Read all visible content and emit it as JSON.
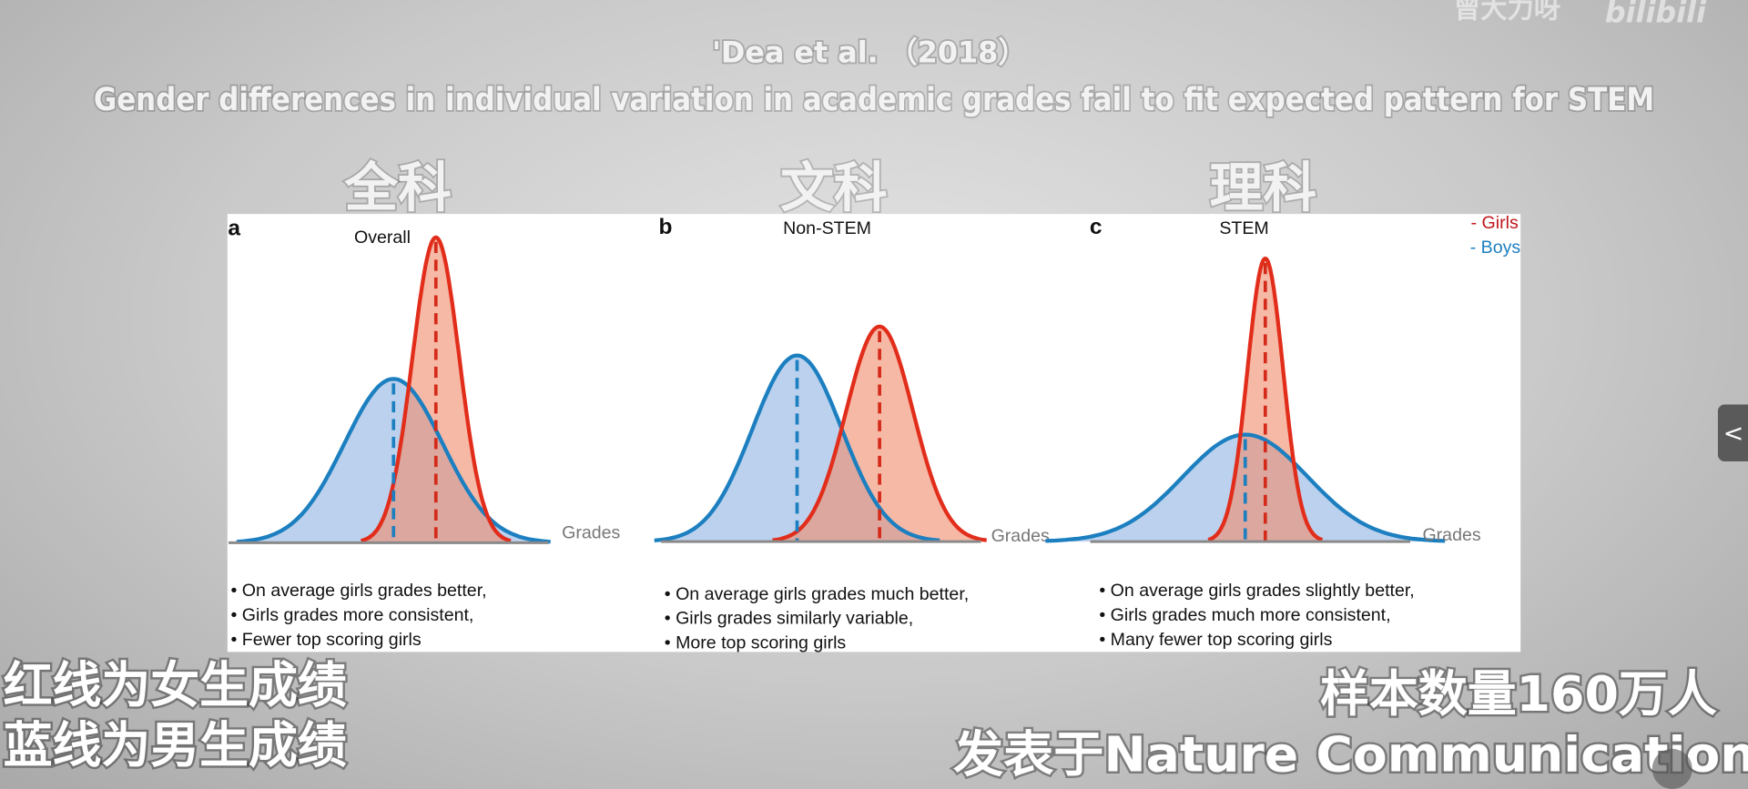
{
  "watermark": {
    "author": "曾大力呀",
    "site": "bilibili"
  },
  "header": {
    "citation": "'Dea et al. （2018）",
    "title": "Gender differences in individual variation in academic grades fail to fit expected pattern for STEM"
  },
  "subject_labels": [
    "全科",
    "文科",
    "理科"
  ],
  "legend": {
    "girls": "- Girls",
    "boys": "- Boys"
  },
  "panels": [
    {
      "letter": "a",
      "title": "Overall",
      "axis_label": "Grades",
      "bullets": [
        "• On average girls grades better,",
        "• Girls grades more consistent,",
        "• Fewer top scoring girls"
      ]
    },
    {
      "letter": "b",
      "title": "Non-STEM",
      "axis_label": "Grades",
      "bullets": [
        "• On average girls grades much better,",
        "• Girls grades similarly variable,",
        "• More top scoring girls"
      ]
    },
    {
      "letter": "c",
      "title": "STEM",
      "axis_label": "Grades",
      "bullets": [
        "• On average girls grades slightly better,",
        "• Girls grades much more consistent,",
        "• Many fewer top scoring girls"
      ]
    }
  ],
  "captions": {
    "left": [
      "红线为女生成绩",
      "蓝线为男生成绩"
    ],
    "right": [
      "样本数量160万人",
      "发表于Nature Communication"
    ]
  },
  "side_tab": "<"
}
